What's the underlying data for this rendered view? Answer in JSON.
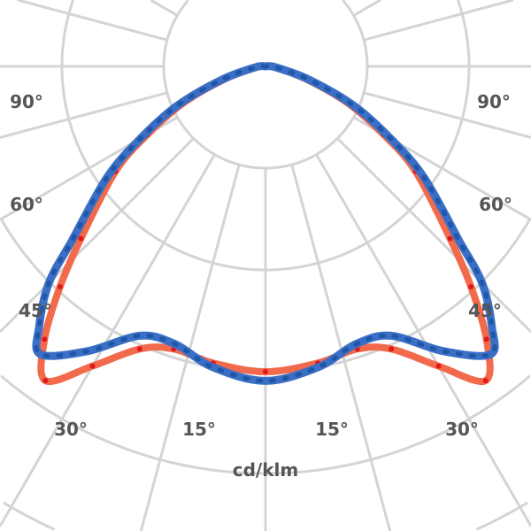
{
  "chart_data": {
    "type": "polar-line",
    "unit_label": "cd/klm",
    "angle_labels": [
      "90°",
      "60°",
      "45°",
      "30°",
      "15°"
    ],
    "grid": true,
    "ring_step": 100,
    "angle_unit": "degrees from nadir",
    "series": [
      {
        "color": "#3b6fc6",
        "angles": [
          0,
          10,
          18,
          25,
          32,
          38,
          41,
          45,
          48,
          55,
          60,
          66,
          73,
          85,
          90
        ],
        "values": [
          309,
          300,
          287,
          292,
          330,
          359,
          339,
          301,
          256,
          190,
          142,
          95,
          45,
          10,
          0
        ]
      },
      {
        "color": "#f26a4c",
        "angles": [
          0,
          10,
          18,
          24,
          30,
          35,
          39,
          43,
          47,
          55,
          60,
          66,
          73,
          85,
          90
        ],
        "values": [
          300,
          296,
          292,
          304,
          340,
          377,
          345,
          296,
          248,
          180,
          134,
          88,
          40,
          8,
          0
        ]
      }
    ]
  }
}
